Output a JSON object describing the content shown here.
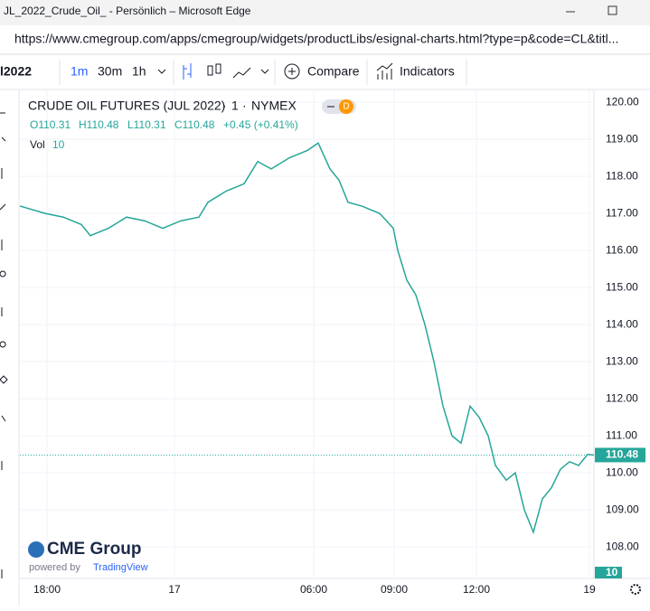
{
  "window": {
    "title": "JL_2022_Crude_Oil_ - Persönlich – Microsoft Edge",
    "url": "https://www.cmegroup.com/apps/cmegroup/widgets/productLibs/esignal-charts.html?type=p&code=CL&titl..."
  },
  "toolbar": {
    "symbol": "l2022",
    "intervals": [
      "1m",
      "30m",
      "1h"
    ],
    "compare": "Compare",
    "indicators": "Indicators"
  },
  "chart_data": {
    "type": "line",
    "title": "CRUDE OIL FUTURES (JUL 2022)",
    "interval": "1",
    "exchange": "NYMEX",
    "badge": "D",
    "legend": {
      "open": "O110.31",
      "high": "H110.48",
      "low": "L110.31",
      "close": "C110.48",
      "change": "+0.45 (+0.41%)",
      "volume_name": "Vol",
      "volume_value": "10"
    },
    "color": "#26a69a",
    "x": [
      0,
      28,
      48,
      68,
      78,
      98,
      118,
      138,
      158,
      178,
      198,
      208,
      228,
      248,
      263,
      278,
      298,
      318,
      330,
      343,
      353,
      363,
      378,
      398,
      413,
      418,
      428,
      438,
      448,
      458,
      468,
      478,
      488,
      498,
      508,
      518,
      526,
      538,
      548,
      558,
      568,
      578,
      588,
      598,
      608,
      618,
      628,
      635
    ],
    "values": [
      117.2,
      117.0,
      116.9,
      116.7,
      116.4,
      116.6,
      116.9,
      116.8,
      116.6,
      116.8,
      116.9,
      117.3,
      117.6,
      117.8,
      118.4,
      118.2,
      118.5,
      118.7,
      118.9,
      118.2,
      117.9,
      117.3,
      117.2,
      117.0,
      116.6,
      116.0,
      115.2,
      114.8,
      114.0,
      113.0,
      111.8,
      111.0,
      110.8,
      111.8,
      111.5,
      111.0,
      110.2,
      109.8,
      110.0,
      109.0,
      108.4,
      109.3,
      109.6,
      110.1,
      110.3,
      110.2,
      110.5,
      110.48
    ],
    "xlim": [
      0,
      635
    ],
    "xticks": [
      {
        "value": 30,
        "label": "18:00"
      },
      {
        "value": 171,
        "label": "17"
      },
      {
        "value": 325,
        "label": "06:00"
      },
      {
        "value": 414,
        "label": "09:00"
      },
      {
        "value": 505,
        "label": "12:00"
      },
      {
        "value": 630,
        "label": "19"
      }
    ],
    "ylim": [
      107.15,
      120.32
    ],
    "yticks": [
      {
        "value": 108,
        "label": "108.00"
      },
      {
        "value": 109,
        "label": "109.00"
      },
      {
        "value": 110,
        "label": "110.00"
      },
      {
        "value": 111,
        "label": "111.00"
      },
      {
        "value": 112,
        "label": "112.00"
      },
      {
        "value": 113,
        "label": "113.00"
      },
      {
        "value": 114,
        "label": "114.00"
      },
      {
        "value": 115,
        "label": "115.00"
      },
      {
        "value": 116,
        "label": "116.00"
      },
      {
        "value": 117,
        "label": "117.00"
      },
      {
        "value": 118,
        "label": "118.00"
      },
      {
        "value": 119,
        "label": "119.00"
      },
      {
        "value": 120,
        "label": "120.00"
      }
    ],
    "last_value": 110.48,
    "grid": true,
    "logo": {
      "name": "CME Group",
      "powered": "powered by",
      "provider": "TradingView"
    }
  }
}
